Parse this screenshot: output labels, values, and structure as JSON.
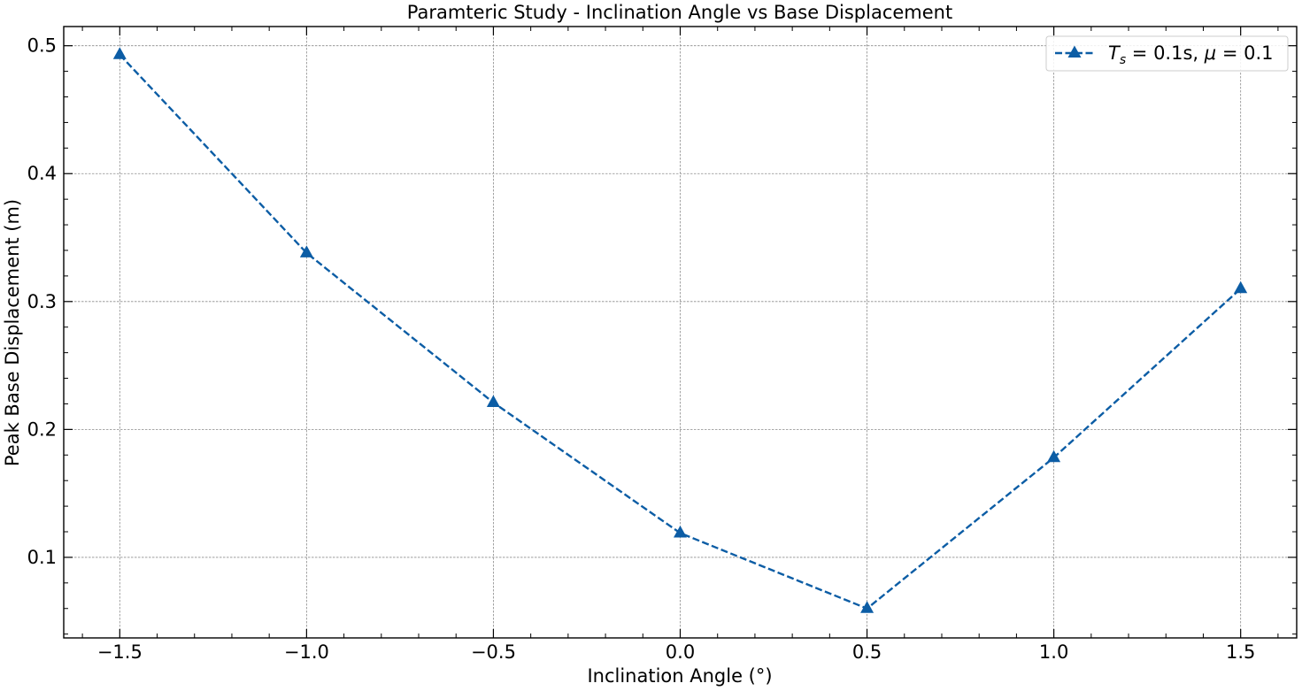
{
  "chart_data": {
    "type": "line",
    "title": "Paramteric Study - Inclination Angle vs Base Displacement",
    "xlabel": "Inclination Angle (°)",
    "ylabel": "Peak Base Displacement (m)",
    "xlim": [
      -1.65,
      1.65
    ],
    "ylim": [
      0.037,
      0.515
    ],
    "xticks": [
      -1.5,
      -1.0,
      -0.5,
      0.0,
      0.5,
      1.0,
      1.5
    ],
    "xtick_labels": [
      "−1.5",
      "−1.0",
      "−0.5",
      "0.0",
      "0.5",
      "1.0",
      "1.5"
    ],
    "yticks": [
      0.1,
      0.2,
      0.3,
      0.4,
      0.5
    ],
    "ytick_labels": [
      "0.1",
      "0.2",
      "0.3",
      "0.4",
      "0.5"
    ],
    "x_minor_step": 0.1,
    "y_minor_step": 0.02,
    "grid": true,
    "legend_position": "top-right",
    "series": [
      {
        "name": "T_s = 0.1s, μ = 0.1",
        "color": "#0c5da5",
        "linestyle": "dashed",
        "marker": "triangle-up",
        "x": [
          -1.5,
          -1.0,
          -0.5,
          0.0,
          0.5,
          1.0,
          1.5
        ],
        "y": [
          0.493,
          0.338,
          0.221,
          0.119,
          0.06,
          0.178,
          0.31
        ]
      }
    ]
  },
  "legend": {
    "t_symbol": "T",
    "t_subscript": "s",
    "equals_ts": " = 0.1s, ",
    "mu_symbol": "μ",
    "equals_mu": " = 0.1"
  }
}
